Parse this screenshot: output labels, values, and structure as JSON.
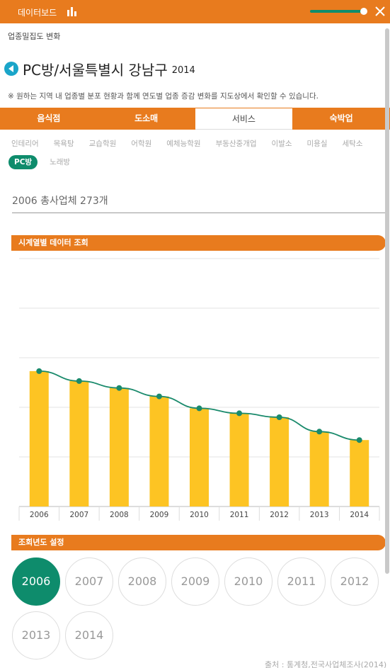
{
  "header": {
    "title": "데이터보드",
    "chart_icon": "bar-chart-icon",
    "close_icon": "close-icon",
    "accent": "#e87b1e",
    "slider_color": "#0e8c6c"
  },
  "breadcrumb": "업종밀집도 변화",
  "region": {
    "name": "PC방/서울특별시 강남구",
    "year": "2014"
  },
  "notice": "※ 원하는 지역 내 업종별 분포 현황과 함께 연도별 업종 증감 변화를 지도상에서 확인할 수 있습니다.",
  "tabs": [
    {
      "label": "음식점",
      "active": false
    },
    {
      "label": "도소매",
      "active": false
    },
    {
      "label": "서비스",
      "active": true
    },
    {
      "label": "숙박업",
      "active": false
    }
  ],
  "subcategories": [
    {
      "label": "인테리어",
      "active": false
    },
    {
      "label": "목욕탕",
      "active": false
    },
    {
      "label": "교습학원",
      "active": false
    },
    {
      "label": "어학원",
      "active": false
    },
    {
      "label": "예체능학원",
      "active": false
    },
    {
      "label": "부동산중개업",
      "active": false
    },
    {
      "label": "이발소",
      "active": false
    },
    {
      "label": "미용실",
      "active": false
    },
    {
      "label": "세탁소",
      "active": false
    },
    {
      "label": "PC방",
      "active": true
    },
    {
      "label": "노래방",
      "active": false
    }
  ],
  "total_text": "2006 총사업체 273개",
  "sections": {
    "timeseries": "시계열별 데이터 조회",
    "year_select": "조회년도 설정"
  },
  "chart_data": {
    "type": "bar",
    "categories": [
      "2006",
      "2007",
      "2008",
      "2009",
      "2010",
      "2011",
      "2012",
      "2013",
      "2014"
    ],
    "values": [
      273,
      253,
      239,
      222,
      198,
      188,
      180,
      151,
      134
    ],
    "overlay": "line",
    "bar_color": "#fdc423",
    "line_color": "#1a8a6c",
    "ylim": [
      0,
      500
    ],
    "grid": true,
    "title": "",
    "xlabel": "",
    "ylabel": ""
  },
  "years": [
    {
      "label": "2006",
      "active": true
    },
    {
      "label": "2007",
      "active": false
    },
    {
      "label": "2008",
      "active": false
    },
    {
      "label": "2009",
      "active": false
    },
    {
      "label": "2010",
      "active": false
    },
    {
      "label": "2011",
      "active": false
    },
    {
      "label": "2012",
      "active": false
    },
    {
      "label": "2013",
      "active": false
    },
    {
      "label": "2014",
      "active": false
    }
  ],
  "source": "출처 : 통계청,전국사업체조사(2014)"
}
